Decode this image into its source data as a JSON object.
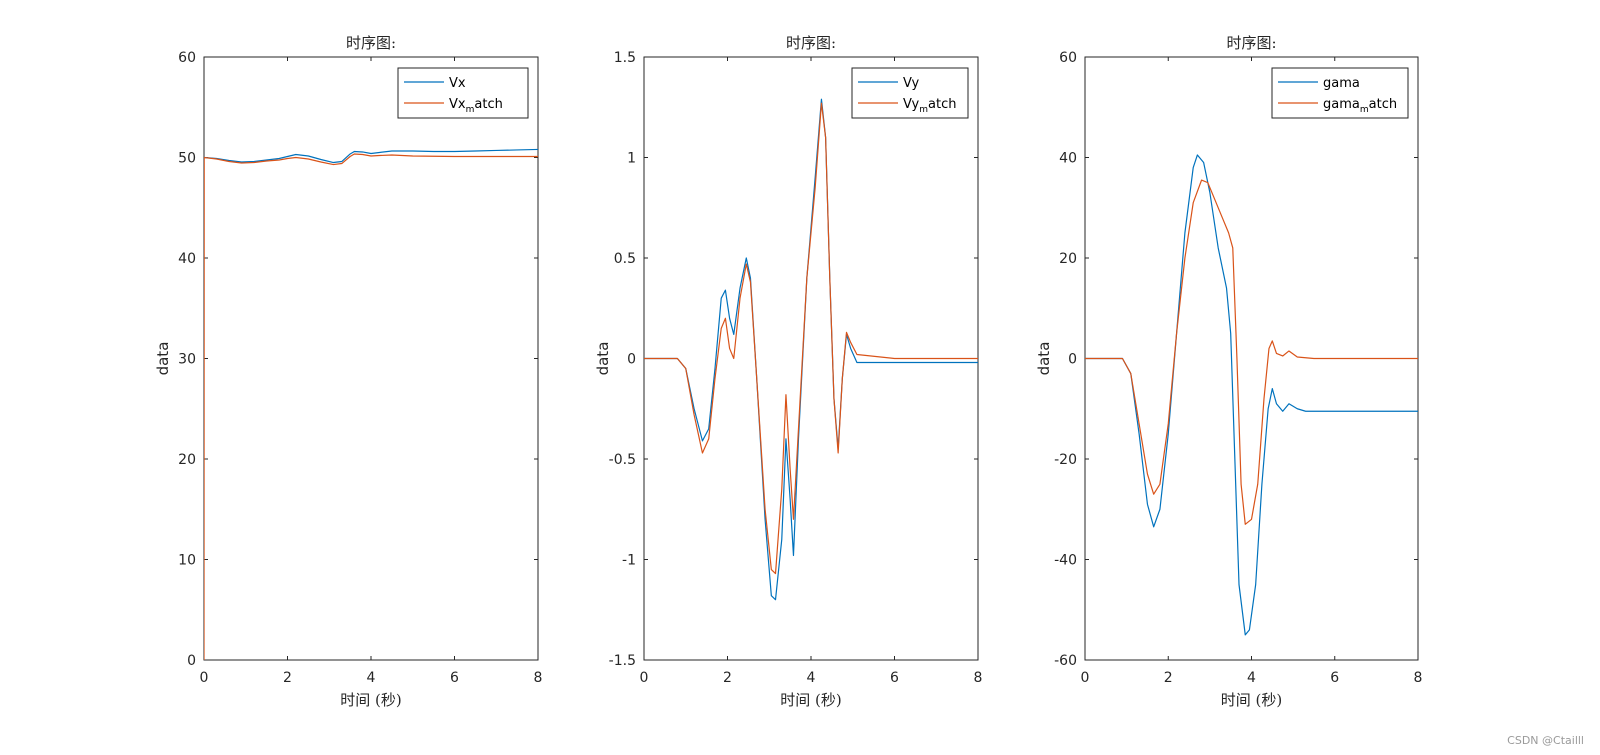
{
  "watermark": "CSDN @Ctailll",
  "colors": {
    "series1": "#0072BD",
    "series2": "#D95319",
    "axis": "#262626"
  },
  "chart_data": [
    {
      "type": "line",
      "title": "时序图:",
      "xlabel": "时间 (秒)",
      "ylabel": "data",
      "xlim": [
        0,
        8
      ],
      "ylim": [
        0,
        60
      ],
      "xticks": [
        0,
        2,
        4,
        6,
        8
      ],
      "yticks": [
        0,
        10,
        20,
        30,
        40,
        50,
        60
      ],
      "legend_position": "top-right",
      "series": [
        {
          "name": "Vx",
          "legend_main": "Vx",
          "legend_sub": "",
          "legend_tail": "",
          "color": "#0072BD",
          "points": [
            [
              0,
              50.0
            ],
            [
              0.3,
              49.9
            ],
            [
              0.6,
              49.7
            ],
            [
              0.9,
              49.55
            ],
            [
              1.2,
              49.6
            ],
            [
              1.5,
              49.75
            ],
            [
              1.8,
              49.9
            ],
            [
              2.0,
              50.1
            ],
            [
              2.2,
              50.3
            ],
            [
              2.5,
              50.15
            ],
            [
              2.8,
              49.8
            ],
            [
              3.1,
              49.5
            ],
            [
              3.3,
              49.6
            ],
            [
              3.5,
              50.35
            ],
            [
              3.6,
              50.6
            ],
            [
              3.8,
              50.55
            ],
            [
              4.0,
              50.4
            ],
            [
              4.2,
              50.5
            ],
            [
              4.5,
              50.65
            ],
            [
              5.0,
              50.65
            ],
            [
              5.5,
              50.6
            ],
            [
              6.0,
              50.6
            ],
            [
              6.5,
              50.65
            ],
            [
              7.0,
              50.7
            ],
            [
              7.5,
              50.75
            ],
            [
              8.0,
              50.8
            ]
          ]
        },
        {
          "name": "Vx_match",
          "legend_main": "Vx",
          "legend_sub": "m",
          "legend_tail": "atch",
          "color": "#D95319",
          "points": [
            [
              0,
              0
            ],
            [
              0.005,
              50.0
            ],
            [
              0.3,
              49.85
            ],
            [
              0.6,
              49.6
            ],
            [
              0.9,
              49.45
            ],
            [
              1.2,
              49.5
            ],
            [
              1.5,
              49.65
            ],
            [
              1.8,
              49.75
            ],
            [
              2.0,
              49.9
            ],
            [
              2.2,
              50.0
            ],
            [
              2.5,
              49.85
            ],
            [
              2.8,
              49.55
            ],
            [
              3.1,
              49.3
            ],
            [
              3.3,
              49.4
            ],
            [
              3.5,
              50.1
            ],
            [
              3.6,
              50.35
            ],
            [
              3.8,
              50.3
            ],
            [
              4.0,
              50.15
            ],
            [
              4.2,
              50.2
            ],
            [
              4.5,
              50.25
            ],
            [
              5.0,
              50.15
            ],
            [
              6.0,
              50.1
            ],
            [
              7.0,
              50.1
            ],
            [
              8.0,
              50.1
            ]
          ]
        }
      ]
    },
    {
      "type": "line",
      "title": "时序图:",
      "xlabel": "时间 (秒)",
      "ylabel": "data",
      "xlim": [
        0,
        8
      ],
      "ylim": [
        -1.5,
        1.5
      ],
      "xticks": [
        0,
        2,
        4,
        6,
        8
      ],
      "yticks": [
        -1.5,
        -1,
        -0.5,
        0,
        0.5,
        1,
        1.5
      ],
      "legend_position": "top-right",
      "series": [
        {
          "name": "Vy",
          "legend_main": "Vy",
          "legend_sub": "",
          "legend_tail": "",
          "color": "#0072BD",
          "points": [
            [
              0,
              0
            ],
            [
              0.8,
              0
            ],
            [
              1.0,
              -0.05
            ],
            [
              1.2,
              -0.25
            ],
            [
              1.4,
              -0.41
            ],
            [
              1.55,
              -0.35
            ],
            [
              1.7,
              -0.05
            ],
            [
              1.85,
              0.3
            ],
            [
              1.95,
              0.34
            ],
            [
              2.05,
              0.2
            ],
            [
              2.15,
              0.12
            ],
            [
              2.3,
              0.35
            ],
            [
              2.45,
              0.5
            ],
            [
              2.55,
              0.4
            ],
            [
              2.7,
              -0.1
            ],
            [
              2.9,
              -0.8
            ],
            [
              3.05,
              -1.18
            ],
            [
              3.15,
              -1.2
            ],
            [
              3.3,
              -0.9
            ],
            [
              3.4,
              -0.4
            ],
            [
              3.5,
              -0.7
            ],
            [
              3.58,
              -0.98
            ],
            [
              3.7,
              -0.4
            ],
            [
              3.9,
              0.4
            ],
            [
              4.1,
              0.9
            ],
            [
              4.25,
              1.29
            ],
            [
              4.35,
              1.1
            ],
            [
              4.45,
              0.4
            ],
            [
              4.55,
              -0.2
            ],
            [
              4.65,
              -0.45
            ],
            [
              4.75,
              -0.1
            ],
            [
              4.85,
              0.12
            ],
            [
              4.95,
              0.05
            ],
            [
              5.1,
              -0.02
            ],
            [
              6.0,
              -0.02
            ],
            [
              8.0,
              -0.02
            ]
          ]
        },
        {
          "name": "Vy_match",
          "legend_main": "Vy",
          "legend_sub": "m",
          "legend_tail": "atch",
          "color": "#D95319",
          "points": [
            [
              0,
              0
            ],
            [
              0.8,
              0
            ],
            [
              1.0,
              -0.05
            ],
            [
              1.2,
              -0.28
            ],
            [
              1.4,
              -0.47
            ],
            [
              1.55,
              -0.4
            ],
            [
              1.7,
              -0.1
            ],
            [
              1.85,
              0.15
            ],
            [
              1.95,
              0.2
            ],
            [
              2.05,
              0.05
            ],
            [
              2.15,
              0.0
            ],
            [
              2.3,
              0.3
            ],
            [
              2.45,
              0.47
            ],
            [
              2.55,
              0.38
            ],
            [
              2.7,
              -0.1
            ],
            [
              2.9,
              -0.75
            ],
            [
              3.05,
              -1.05
            ],
            [
              3.15,
              -1.07
            ],
            [
              3.3,
              -0.65
            ],
            [
              3.4,
              -0.18
            ],
            [
              3.5,
              -0.55
            ],
            [
              3.58,
              -0.8
            ],
            [
              3.7,
              -0.35
            ],
            [
              3.9,
              0.4
            ],
            [
              4.1,
              0.85
            ],
            [
              4.25,
              1.27
            ],
            [
              4.35,
              1.1
            ],
            [
              4.45,
              0.4
            ],
            [
              4.55,
              -0.2
            ],
            [
              4.65,
              -0.47
            ],
            [
              4.75,
              -0.1
            ],
            [
              4.85,
              0.13
            ],
            [
              4.95,
              0.08
            ],
            [
              5.1,
              0.02
            ],
            [
              6.0,
              0.0
            ],
            [
              8.0,
              0.0
            ]
          ]
        }
      ]
    },
    {
      "type": "line",
      "title": "时序图:",
      "xlabel": "时间 (秒)",
      "ylabel": "data",
      "xlim": [
        0,
        8
      ],
      "ylim": [
        -60,
        60
      ],
      "xticks": [
        0,
        2,
        4,
        6,
        8
      ],
      "yticks": [
        -60,
        -40,
        -20,
        0,
        20,
        40,
        60
      ],
      "legend_position": "top-right",
      "series": [
        {
          "name": "gama",
          "legend_main": "gama",
          "legend_sub": "",
          "legend_tail": "",
          "color": "#0072BD",
          "points": [
            [
              0,
              0
            ],
            [
              0.9,
              0
            ],
            [
              1.1,
              -3
            ],
            [
              1.3,
              -15
            ],
            [
              1.5,
              -29
            ],
            [
              1.65,
              -33.5
            ],
            [
              1.8,
              -30
            ],
            [
              2.0,
              -15
            ],
            [
              2.2,
              5
            ],
            [
              2.4,
              25
            ],
            [
              2.6,
              38
            ],
            [
              2.7,
              40.5
            ],
            [
              2.85,
              39
            ],
            [
              3.0,
              33
            ],
            [
              3.2,
              22
            ],
            [
              3.4,
              14
            ],
            [
              3.5,
              5
            ],
            [
              3.6,
              -20
            ],
            [
              3.7,
              -45
            ],
            [
              3.85,
              -55
            ],
            [
              3.95,
              -54
            ],
            [
              4.1,
              -45
            ],
            [
              4.25,
              -25
            ],
            [
              4.4,
              -10
            ],
            [
              4.5,
              -6
            ],
            [
              4.6,
              -9
            ],
            [
              4.75,
              -10.5
            ],
            [
              4.9,
              -9
            ],
            [
              5.1,
              -10
            ],
            [
              5.3,
              -10.5
            ],
            [
              6.0,
              -10.5
            ],
            [
              8.0,
              -10.5
            ]
          ]
        },
        {
          "name": "gama_match",
          "legend_main": "gama",
          "legend_sub": "m",
          "legend_tail": "atch",
          "color": "#D95319",
          "points": [
            [
              0,
              0
            ],
            [
              0.9,
              0
            ],
            [
              1.1,
              -3
            ],
            [
              1.3,
              -13
            ],
            [
              1.5,
              -23
            ],
            [
              1.65,
              -27
            ],
            [
              1.8,
              -25
            ],
            [
              2.0,
              -13
            ],
            [
              2.2,
              5
            ],
            [
              2.4,
              20
            ],
            [
              2.6,
              31
            ],
            [
              2.8,
              35.5
            ],
            [
              2.95,
              35
            ],
            [
              3.1,
              32
            ],
            [
              3.3,
              28
            ],
            [
              3.45,
              25
            ],
            [
              3.55,
              22
            ],
            [
              3.65,
              0
            ],
            [
              3.75,
              -25
            ],
            [
              3.85,
              -33
            ],
            [
              4.0,
              -32
            ],
            [
              4.15,
              -25
            ],
            [
              4.3,
              -8
            ],
            [
              4.42,
              2
            ],
            [
              4.5,
              3.5
            ],
            [
              4.6,
              1
            ],
            [
              4.75,
              0.5
            ],
            [
              4.9,
              1.5
            ],
            [
              5.1,
              0.3
            ],
            [
              5.5,
              0
            ],
            [
              8.0,
              0
            ]
          ]
        }
      ]
    }
  ]
}
